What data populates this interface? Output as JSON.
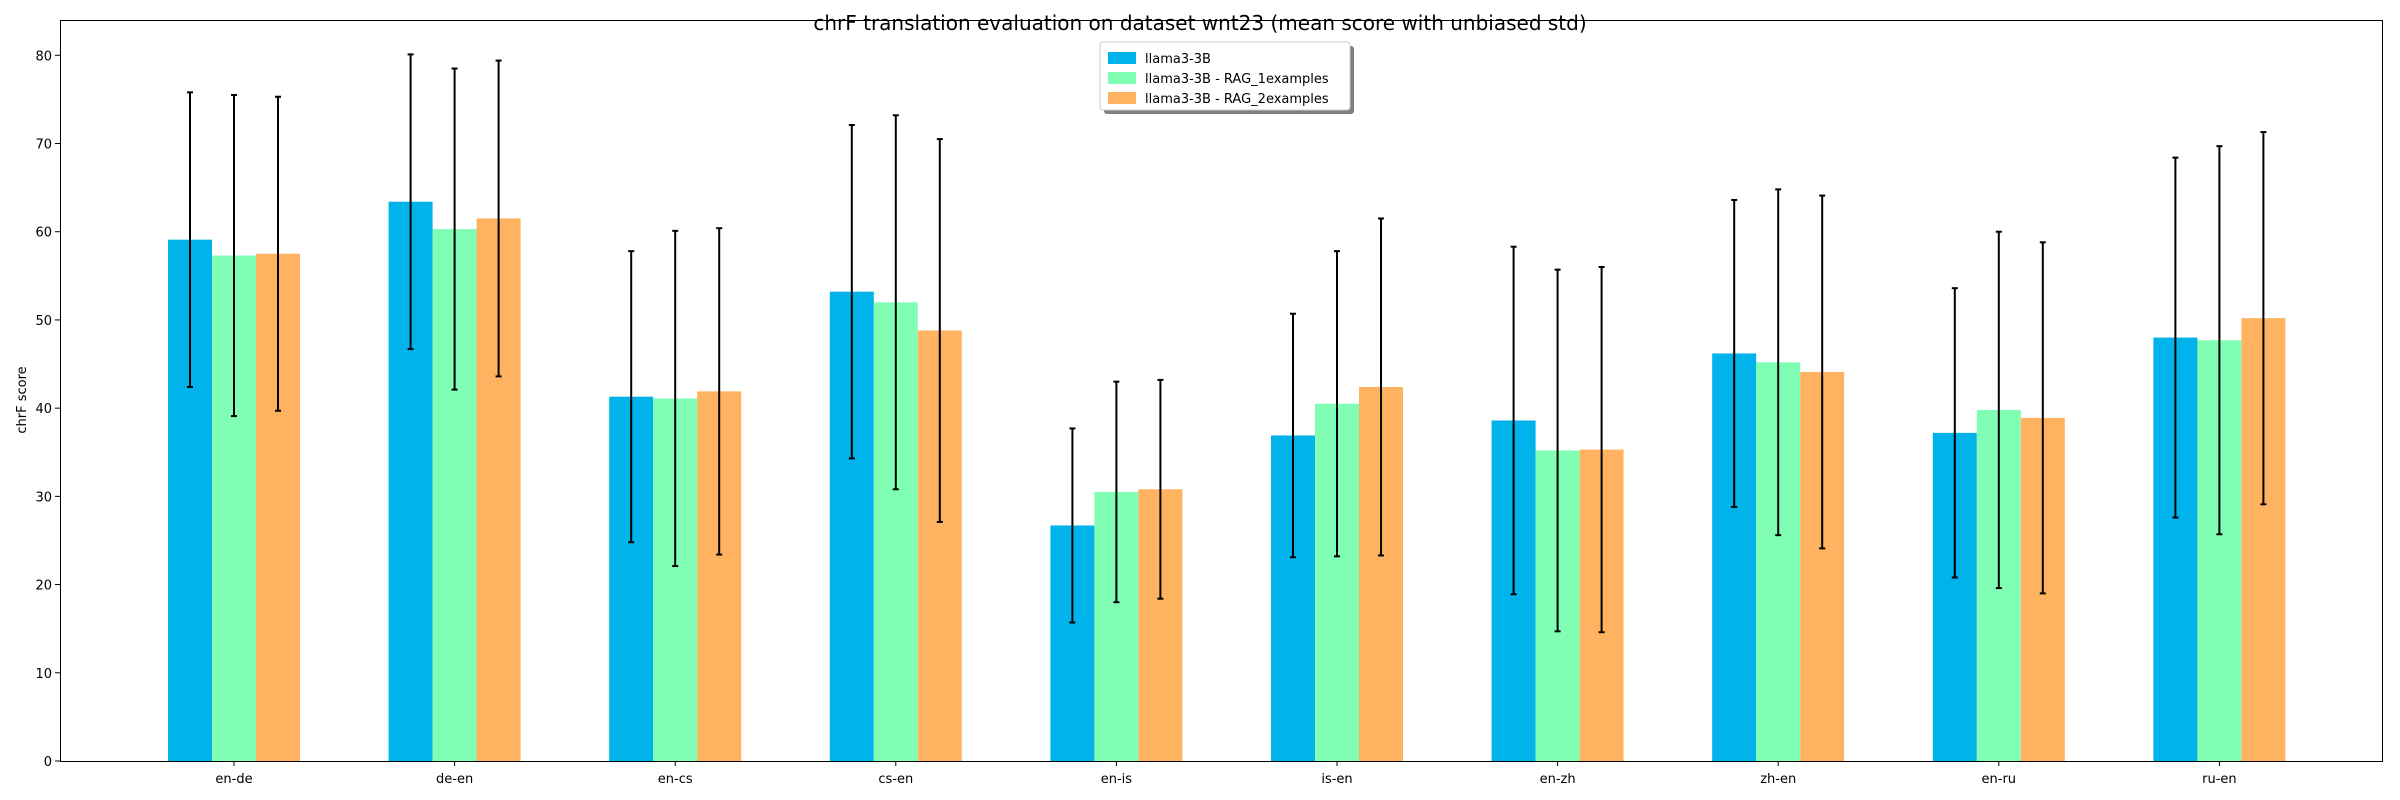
{
  "chart_data": {
    "type": "bar",
    "title": "chrF translation evaluation on dataset wnt23 (mean score with unbiased std)",
    "xlabel": "",
    "ylabel": "chrF score",
    "ylim": [
      0,
      84
    ],
    "yticks": [
      0,
      10,
      20,
      30,
      40,
      50,
      60,
      70,
      80
    ],
    "grid": false,
    "legend_position": "top-center",
    "categories": [
      "en-de",
      "de-en",
      "en-cs",
      "cs-en",
      "en-is",
      "is-en",
      "en-zh",
      "zh-en",
      "en-ru",
      "ru-en"
    ],
    "series": [
      {
        "name": "llama3-3B",
        "color": "#00b4eb",
        "values": [
          59.1,
          63.4,
          41.3,
          53.2,
          26.7,
          36.9,
          38.6,
          46.2,
          37.2,
          48.0
        ],
        "std": [
          16.7,
          16.7,
          16.5,
          18.9,
          11.0,
          13.8,
          19.7,
          17.4,
          16.4,
          20.4
        ]
      },
      {
        "name": "llama3-3B - RAG_1examples",
        "color": "#80ffb4",
        "values": [
          57.3,
          60.3,
          41.1,
          52.0,
          30.5,
          40.5,
          35.2,
          45.2,
          39.8,
          47.7
        ],
        "std": [
          18.2,
          18.2,
          19.0,
          21.2,
          12.5,
          17.3,
          20.5,
          19.6,
          20.2,
          22.0
        ]
      },
      {
        "name": "llama3-3B - RAG_2examples",
        "color": "#ffb360",
        "values": [
          57.5,
          61.5,
          41.9,
          48.8,
          30.8,
          42.4,
          35.3,
          44.1,
          38.9,
          50.2
        ],
        "std": [
          17.8,
          17.9,
          18.5,
          21.7,
          12.4,
          19.1,
          20.7,
          20.0,
          19.9,
          21.1
        ]
      }
    ]
  }
}
